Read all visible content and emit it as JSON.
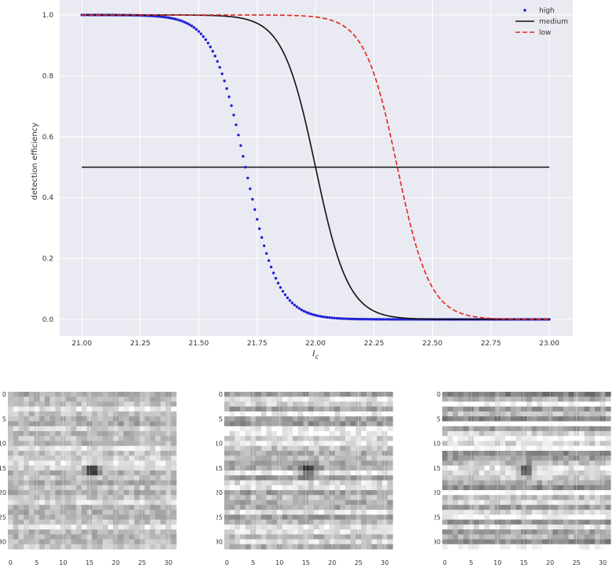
{
  "chart_data": [
    {
      "type": "line",
      "xlabel": "I",
      "xlabel_subscript": "c",
      "ylabel": "detection efficiency",
      "xlim": [
        21.0,
        23.0
      ],
      "ylim": [
        0.0,
        1.0
      ],
      "xticks": [
        "21.00",
        "21.25",
        "21.50",
        "21.75",
        "22.00",
        "22.25",
        "22.50",
        "22.75",
        "23.00"
      ],
      "yticks": [
        "0.0",
        "0.2",
        "0.4",
        "0.6",
        "0.8",
        "1.0"
      ],
      "grid": true,
      "legend_position": "top-right",
      "series": [
        {
          "name": "high",
          "style": "dotted",
          "color": "#1f1fd6",
          "midpoint": 21.7,
          "width": 0.07
        },
        {
          "name": "medium",
          "style": "solid",
          "color": "#111111",
          "midpoint": 22.0,
          "width": 0.07
        },
        {
          "name": "low",
          "style": "dashed",
          "color": "#e0281c",
          "midpoint": 22.35,
          "width": 0.07
        }
      ],
      "reference_line": {
        "y": 0.5,
        "x_range": [
          21.0,
          23.0
        ],
        "color": "#111111"
      }
    },
    {
      "type": "heatmap",
      "colormap": "gray",
      "xticks": [
        "0",
        "5",
        "10",
        "15",
        "20",
        "25",
        "30"
      ],
      "yticks": [
        "0",
        "5",
        "10",
        "15",
        "20",
        "25",
        "30"
      ],
      "size": 32,
      "source_position": [
        15.5,
        15.5
      ],
      "panels": [
        {
          "id": "left",
          "stripe_strength": 0.12
        },
        {
          "id": "middle",
          "stripe_strength": 0.18
        },
        {
          "id": "right",
          "stripe_strength": 0.28
        }
      ]
    }
  ]
}
